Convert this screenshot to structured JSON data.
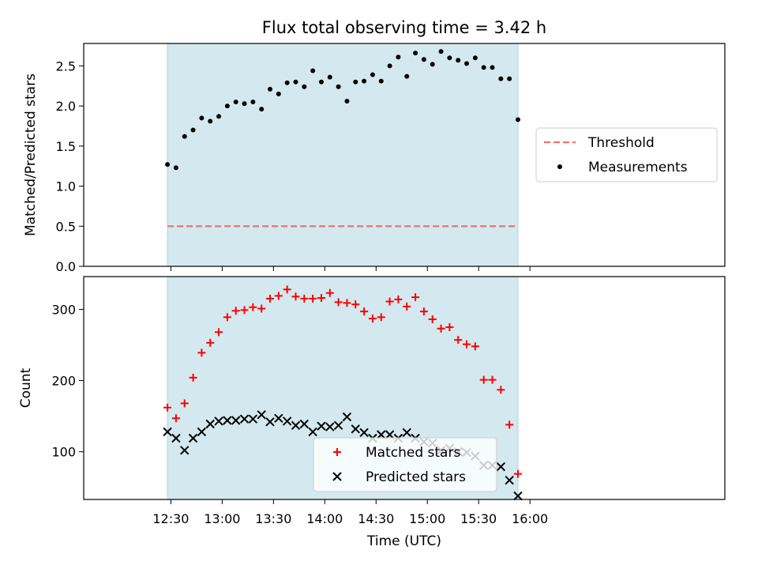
{
  "figure": {
    "title": "Flux total observing time = 3.42 h",
    "x_label": "Time (UTC)"
  },
  "colors": {
    "observing_band": "#d3e9ef",
    "band_edge": "#add8e6",
    "threshold": "#f07171",
    "measurements": "#000000",
    "matched": "#ff0000",
    "predicted": "#000000"
  },
  "chart_data": [
    {
      "type": "scatter",
      "ylabel": "Matched/Predicted stars",
      "xlabel": "",
      "ylim": [
        0,
        2.78
      ],
      "yticks": [
        0.0,
        0.5,
        1.0,
        1.5,
        2.0,
        2.5
      ],
      "x_unit": "minutes since 12:00 UTC",
      "xlim": [
        -21,
        354
      ],
      "xticks": [
        "12:30",
        "13:00",
        "13:30",
        "14:00",
        "14:30",
        "15:00",
        "15:30",
        "16:00"
      ],
      "observing_span": [
        "12:28",
        "15:53"
      ],
      "legend": "center-right",
      "series": [
        {
          "name": "Threshold",
          "style": "dashed-line",
          "x": [
            "12:28",
            "15:53"
          ],
          "values": [
            0.5,
            0.5
          ]
        },
        {
          "name": "Measurements",
          "style": "dots",
          "x": [
            "12:28",
            "12:33",
            "12:38",
            "12:43",
            "12:48",
            "12:53",
            "12:58",
            "13:03",
            "13:08",
            "13:13",
            "13:18",
            "13:23",
            "13:28",
            "13:33",
            "13:38",
            "13:43",
            "13:48",
            "13:53",
            "13:58",
            "14:03",
            "14:08",
            "14:13",
            "14:18",
            "14:23",
            "14:28",
            "14:33",
            "14:38",
            "14:43",
            "14:48",
            "14:53",
            "14:58",
            "15:03",
            "15:08",
            "15:13",
            "15:18",
            "15:23",
            "15:28",
            "15:33",
            "15:38",
            "15:43",
            "15:48",
            "15:53"
          ],
          "values": [
            1.27,
            1.23,
            1.62,
            1.7,
            1.85,
            1.81,
            1.87,
            2.0,
            2.05,
            2.03,
            2.05,
            1.96,
            2.21,
            2.15,
            2.29,
            2.3,
            2.24,
            2.44,
            2.3,
            2.36,
            2.24,
            2.06,
            2.3,
            2.31,
            2.39,
            2.31,
            2.5,
            2.61,
            2.37,
            2.66,
            2.58,
            2.52,
            2.68,
            2.6,
            2.57,
            2.53,
            2.6,
            2.48,
            2.48,
            2.34,
            2.34,
            1.83
          ]
        }
      ]
    },
    {
      "type": "scatter",
      "ylabel": "Count",
      "xlabel": "Time (UTC)",
      "ylim": [
        33,
        346
      ],
      "yticks": [
        100,
        200,
        300
      ],
      "x_unit": "minutes since 12:00 UTC",
      "xlim": [
        -21,
        354
      ],
      "xticks": [
        "12:30",
        "13:00",
        "13:30",
        "14:00",
        "14:30",
        "15:00",
        "15:30",
        "16:00"
      ],
      "observing_span": [
        "12:28",
        "15:53"
      ],
      "legend": "bottom-center",
      "x": [
        "12:28",
        "12:33",
        "12:38",
        "12:43",
        "12:48",
        "12:53",
        "12:58",
        "13:03",
        "13:08",
        "13:13",
        "13:18",
        "13:23",
        "13:28",
        "13:33",
        "13:38",
        "13:43",
        "13:48",
        "13:53",
        "13:58",
        "14:03",
        "14:08",
        "14:13",
        "14:18",
        "14:23",
        "14:28",
        "14:33",
        "14:38",
        "14:43",
        "14:48",
        "14:53",
        "14:58",
        "15:03",
        "15:08",
        "15:13",
        "15:18",
        "15:23",
        "15:28",
        "15:33",
        "15:38",
        "15:43",
        "15:48",
        "15:53"
      ],
      "series": [
        {
          "name": "Matched stars",
          "marker": "plus",
          "values": [
            162,
            147,
            168,
            204,
            239,
            253,
            268,
            289,
            298,
            299,
            303,
            301,
            315,
            319,
            328,
            318,
            315,
            315,
            316,
            323,
            310,
            309,
            307,
            297,
            287,
            289,
            311,
            314,
            304,
            317,
            297,
            286,
            273,
            275,
            257,
            251,
            248,
            201,
            201,
            187,
            138,
            69
          ]
        },
        {
          "name": "Predicted stars",
          "marker": "x",
          "values": [
            128,
            119,
            102,
            119,
            128,
            139,
            143,
            144,
            144,
            146,
            146,
            152,
            142,
            147,
            143,
            137,
            139,
            128,
            136,
            135,
            137,
            149,
            132,
            127,
            119,
            124,
            124,
            119,
            127,
            119,
            114,
            112,
            102,
            105,
            100,
            99,
            94,
            81,
            81,
            79,
            60,
            38
          ]
        }
      ]
    }
  ]
}
